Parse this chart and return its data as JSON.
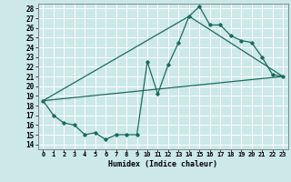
{
  "xlabel": "Humidex (Indice chaleur)",
  "bg_color": "#cce8e8",
  "grid_color": "#ffffff",
  "line_color": "#1a6b60",
  "xlim": [
    -0.5,
    23.5
  ],
  "ylim": [
    13.5,
    28.5
  ],
  "xticks": [
    0,
    1,
    2,
    3,
    4,
    5,
    6,
    7,
    8,
    9,
    10,
    11,
    12,
    13,
    14,
    15,
    16,
    17,
    18,
    19,
    20,
    21,
    22,
    23
  ],
  "yticks": [
    14,
    15,
    16,
    17,
    18,
    19,
    20,
    21,
    22,
    23,
    24,
    25,
    26,
    27,
    28
  ],
  "curve1_x": [
    0,
    1,
    2,
    3,
    4,
    5,
    6,
    7,
    8,
    9,
    10,
    11,
    12,
    13,
    14,
    15,
    16,
    17,
    18,
    19,
    20,
    21,
    22,
    23
  ],
  "curve1_y": [
    18.5,
    17.0,
    16.2,
    16.0,
    15.0,
    15.2,
    14.5,
    15.0,
    15.0,
    15.0,
    22.5,
    19.2,
    22.2,
    24.5,
    27.2,
    28.2,
    26.3,
    26.3,
    25.2,
    24.7,
    24.5,
    23.0,
    21.2,
    21.0
  ],
  "curve2_x": [
    0,
    23
  ],
  "curve2_y": [
    18.5,
    21.0
  ],
  "curve3_x": [
    0,
    14,
    23
  ],
  "curve3_y": [
    18.5,
    27.2,
    21.0
  ]
}
